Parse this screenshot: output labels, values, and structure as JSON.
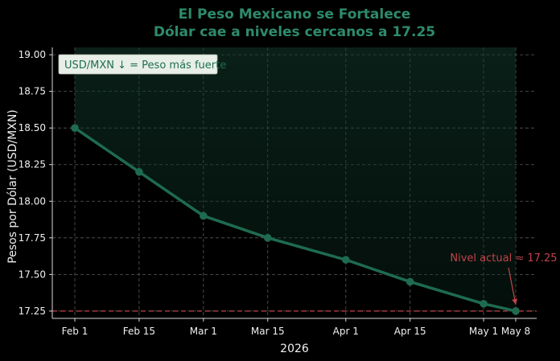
{
  "chart_data": {
    "type": "line",
    "title": "El Peso Mexicano se Fortalece",
    "subtitle": "Dólar cae a niveles cercanos a 17.25",
    "xlabel": "2026",
    "ylabel": "Pesos por Dólar (USD/MXN)",
    "ylim": [
      17.2,
      19.05
    ],
    "yticks": [
      17.25,
      17.5,
      17.75,
      18.0,
      18.25,
      18.5,
      18.75,
      19.0
    ],
    "ytick_labels": [
      "17.25",
      "17.50",
      "17.75",
      "18.00",
      "18.25",
      "18.50",
      "18.75",
      "19.00"
    ],
    "x": [
      "2026-02-01",
      "2026-02-15",
      "2026-03-01",
      "2026-03-15",
      "2026-04-01",
      "2026-04-15",
      "2026-05-01",
      "2026-05-08"
    ],
    "x_tick_labels": [
      "Feb 1",
      "Feb 15",
      "Mar 1",
      "Mar 15",
      "Apr 1",
      "Apr 15",
      "May 1",
      "May 8"
    ],
    "series": [
      {
        "values": [
          18.5,
          18.2,
          17.9,
          17.75,
          17.6,
          17.45,
          17.3,
          17.25
        ],
        "color": "#1e6b50"
      }
    ],
    "reference_line": {
      "y": 17.25,
      "color": "#c2434a",
      "style": "dashed"
    },
    "legend_text": "USD/MXN ↓ = Peso más fuerte",
    "legend_placement": "top-left",
    "annotation": {
      "text": "Nivel actual ≈ 17.25",
      "points_to_x": "2026-05-08",
      "points_to_y": 17.25,
      "color": "#c2434a"
    },
    "grid": true,
    "fill_under": true
  }
}
